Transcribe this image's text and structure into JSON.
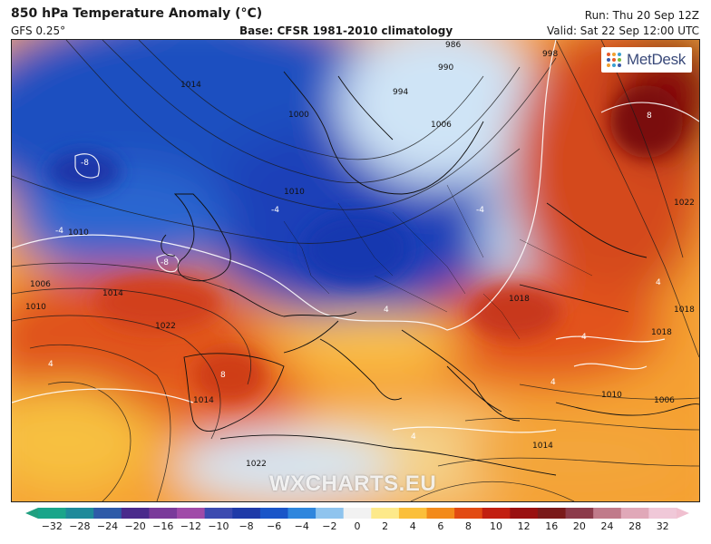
{
  "header": {
    "title": "850 hPa Temperature Anomaly (°C)",
    "model": "GFS 0.25°",
    "base": "Base: CFSR 1981-2010 climatology",
    "run": "Run: Thu 20 Sep 12Z",
    "valid": "Valid: Sat 22 Sep 12:00 UTC"
  },
  "branding": {
    "logo_text": "MetDesk",
    "watermark": "WXCHARTS.EU"
  },
  "map": {
    "isobar_labels": [
      "986",
      "990",
      "994",
      "998",
      "1000",
      "1006",
      "1010",
      "1014",
      "1018",
      "1022",
      "1006",
      "1010",
      "1014",
      "1022",
      "1018",
      "1010",
      "1006",
      "1014",
      "1010",
      "1014",
      "1018",
      "1022"
    ],
    "anomaly_labels": [
      "-8",
      "-4",
      "-8",
      "8",
      "4",
      "4",
      "4",
      "-4",
      "-4",
      "8",
      "4",
      "4",
      "4"
    ]
  },
  "colorbar": {
    "labels": [
      "−32",
      "−28",
      "−24",
      "−20",
      "−16",
      "−12",
      "−10",
      "−8",
      "−6",
      "−4",
      "−2",
      "0",
      "2",
      "4",
      "6",
      "8",
      "10",
      "12",
      "16",
      "20",
      "24",
      "28",
      "32"
    ],
    "stops": [
      "#1aa58a",
      "#1e8a9a",
      "#2e5aa8",
      "#4a2a8c",
      "#7a3a9a",
      "#a04aa8",
      "#3c4ab0",
      "#1f3aa8",
      "#1a55c8",
      "#2f86dd",
      "#8fc4ee",
      "#f2f2f2",
      "#fde98a",
      "#fbbf3a",
      "#f38a1a",
      "#e24a12",
      "#c21f10",
      "#9a1010",
      "#7a1a1a",
      "#8c3a4a",
      "#c07a8a",
      "#e0a8b8",
      "#f0c8d8"
    ],
    "arrow_left": "#20a080",
    "arrow_right": "#f0c0d0"
  }
}
